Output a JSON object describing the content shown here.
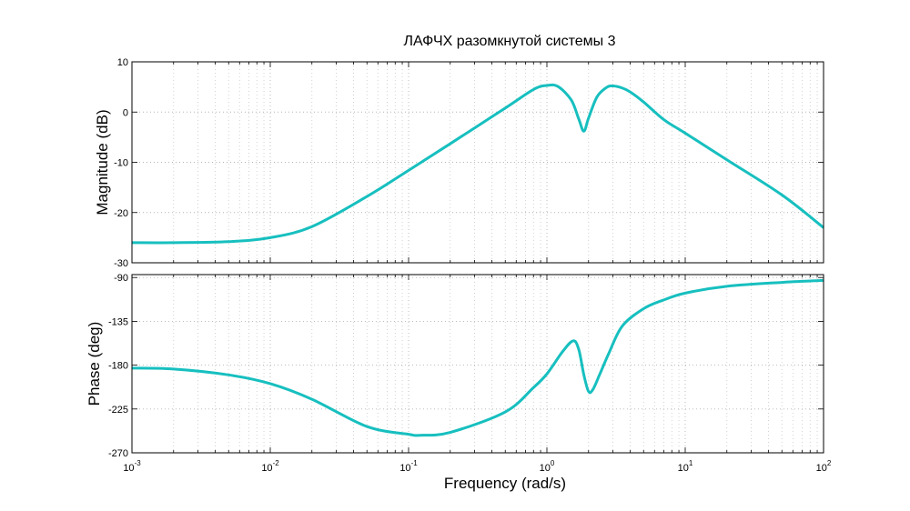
{
  "chart_data": {
    "type": "line",
    "title": "ЛАФЧХ разомкнутой системы 3",
    "xlabel": "Frequency  (rad/s)",
    "xscale": "log",
    "xlim": [
      0.001,
      100
    ],
    "x_ticks": [
      {
        "value": 0.001,
        "base": "10",
        "exp": "-3"
      },
      {
        "value": 0.01,
        "base": "10",
        "exp": "-2"
      },
      {
        "value": 0.1,
        "base": "10",
        "exp": "-1"
      },
      {
        "value": 1,
        "base": "10",
        "exp": "0"
      },
      {
        "value": 10,
        "base": "10",
        "exp": "1"
      },
      {
        "value": 100,
        "base": "10",
        "exp": "2"
      }
    ],
    "grid": true,
    "line_color": "#17bfbf",
    "panels": [
      {
        "name": "magnitude",
        "ylabel": "Magnitude (dB)",
        "ylim": [
          -30,
          10
        ],
        "y_ticks": [
          {
            "value": 10,
            "label": "10"
          },
          {
            "value": 0,
            "label": "0"
          },
          {
            "value": -10,
            "label": "-10"
          },
          {
            "value": -20,
            "label": "-20"
          },
          {
            "value": -30,
            "label": "-30"
          }
        ],
        "x": [
          0.001,
          0.002,
          0.005,
          0.01,
          0.02,
          0.05,
          0.1,
          0.2,
          0.5,
          0.8,
          1.0,
          1.2,
          1.5,
          1.7,
          1.85,
          2.0,
          2.3,
          2.7,
          3.0,
          3.5,
          4.0,
          5.0,
          7.0,
          10,
          20,
          50,
          100
        ],
        "y": [
          -26.0,
          -26.0,
          -25.8,
          -25.0,
          -22.8,
          -16.8,
          -11.6,
          -6.3,
          0.8,
          4.5,
          5.3,
          5.1,
          2.4,
          -1.4,
          -3.8,
          -1.2,
          3.0,
          4.9,
          5.2,
          4.8,
          4.0,
          2.0,
          -1.5,
          -4.2,
          -9.5,
          -16.5,
          -23.0
        ]
      },
      {
        "name": "phase",
        "ylabel": "Phase (deg)",
        "ylim": [
          -270,
          -87
        ],
        "y_ticks": [
          {
            "value": -90,
            "label": "-90"
          },
          {
            "value": -135,
            "label": "-135"
          },
          {
            "value": -180,
            "label": "-180"
          },
          {
            "value": -225,
            "label": "-225"
          },
          {
            "value": -270,
            "label": "-270"
          }
        ],
        "x": [
          0.001,
          0.002,
          0.005,
          0.01,
          0.02,
          0.05,
          0.1,
          0.12,
          0.2,
          0.5,
          0.8,
          1.0,
          1.3,
          1.55,
          1.7,
          1.85,
          2.0,
          2.15,
          2.4,
          2.8,
          3.5,
          5.0,
          7.0,
          10,
          20,
          50,
          100
        ],
        "y": [
          -183,
          -184,
          -190,
          -199,
          -215,
          -243,
          -251,
          -252,
          -249,
          -228,
          -203,
          -189,
          -166,
          -155,
          -164,
          -190,
          -207,
          -205,
          -190,
          -168,
          -140,
          -122,
          -113,
          -106,
          -99,
          -95,
          -93
        ]
      }
    ]
  }
}
